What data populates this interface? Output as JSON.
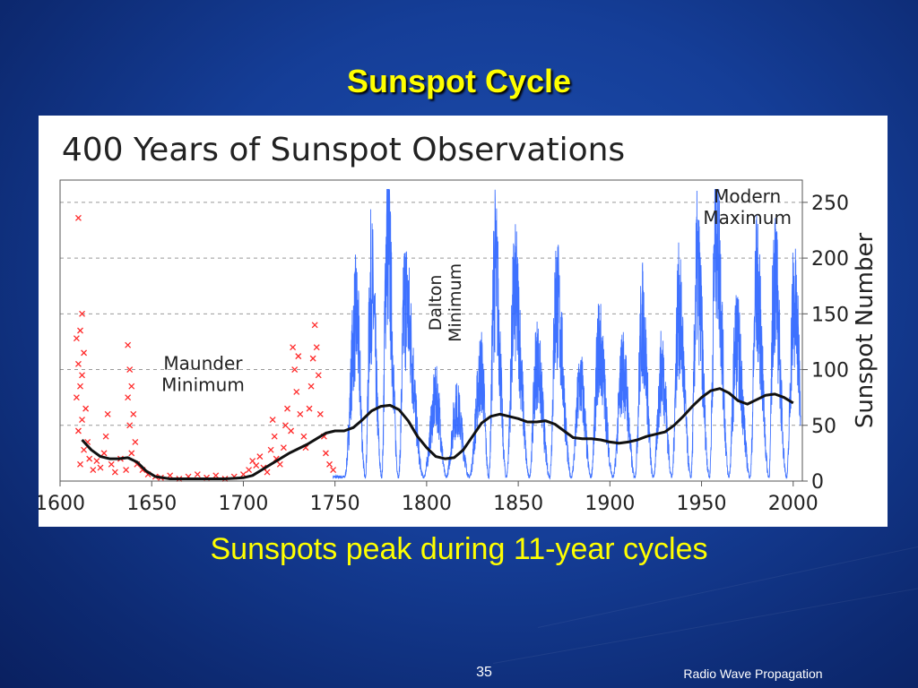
{
  "slide": {
    "title": "Sunspot Cycle",
    "caption": "Sunspots peak during 11-year cycles",
    "page_number": "35",
    "footer": "Radio Wave Propagation"
  },
  "colors": {
    "background": "#153e98",
    "title": "#ffff00",
    "observations_early": "#ff2a2a",
    "observations_modern": "#2962ff",
    "smoothed_trend": "#111111"
  },
  "chart_data": {
    "type": "line",
    "title": "400 Years of Sunspot Observations",
    "ylabel": "Sunspot Number",
    "xlim": [
      1600,
      2005
    ],
    "ylim": [
      0,
      270
    ],
    "x_ticks": [
      1600,
      1650,
      1700,
      1750,
      1800,
      1850,
      1900,
      1950,
      2000
    ],
    "y_ticks": [
      0,
      50,
      100,
      150,
      200,
      250
    ],
    "grid": "horizontal dashed",
    "annotations": [
      {
        "text": "Maunder\nMinimum",
        "x": 1678,
        "y": 100
      },
      {
        "text": "Dalton\nMinimum",
        "x": 1808,
        "y": 160
      },
      {
        "text": "Modern\nMaximum",
        "x": 1975,
        "y": 250
      }
    ],
    "early_observations": {
      "marker": "x",
      "points": [
        [
          1610,
          236
        ],
        [
          1612,
          150
        ],
        [
          1611,
          135
        ],
        [
          1609,
          128
        ],
        [
          1613,
          115
        ],
        [
          1610,
          105
        ],
        [
          1612,
          95
        ],
        [
          1611,
          85
        ],
        [
          1609,
          75
        ],
        [
          1614,
          65
        ],
        [
          1612,
          55
        ],
        [
          1610,
          45
        ],
        [
          1615,
          35
        ],
        [
          1613,
          28
        ],
        [
          1616,
          20
        ],
        [
          1611,
          15
        ],
        [
          1618,
          10
        ],
        [
          1620,
          18
        ],
        [
          1622,
          12
        ],
        [
          1625,
          40
        ],
        [
          1626,
          60
        ],
        [
          1624,
          25
        ],
        [
          1628,
          15
        ],
        [
          1630,
          8
        ],
        [
          1633,
          20
        ],
        [
          1636,
          10
        ],
        [
          1637,
          122
        ],
        [
          1638,
          100
        ],
        [
          1639,
          85
        ],
        [
          1637,
          75
        ],
        [
          1640,
          60
        ],
        [
          1638,
          50
        ],
        [
          1641,
          35
        ],
        [
          1639,
          25
        ],
        [
          1642,
          15
        ],
        [
          1645,
          10
        ],
        [
          1648,
          6
        ],
        [
          1652,
          4
        ],
        [
          1655,
          3
        ],
        [
          1660,
          5
        ],
        [
          1665,
          2
        ],
        [
          1670,
          4
        ],
        [
          1675,
          6
        ],
        [
          1680,
          3
        ],
        [
          1685,
          5
        ],
        [
          1690,
          2
        ],
        [
          1695,
          4
        ],
        [
          1700,
          6
        ],
        [
          1703,
          10
        ],
        [
          1705,
          18
        ],
        [
          1707,
          14
        ],
        [
          1709,
          22
        ],
        [
          1711,
          12
        ],
        [
          1713,
          8
        ],
        [
          1715,
          28
        ],
        [
          1716,
          55
        ],
        [
          1717,
          40
        ],
        [
          1718,
          20
        ],
        [
          1720,
          15
        ],
        [
          1722,
          30
        ],
        [
          1723,
          50
        ],
        [
          1724,
          65
        ],
        [
          1726,
          45
        ],
        [
          1727,
          120
        ],
        [
          1728,
          100
        ],
        [
          1729,
          80
        ],
        [
          1730,
          112
        ],
        [
          1731,
          60
        ],
        [
          1733,
          40
        ],
        [
          1734,
          30
        ],
        [
          1736,
          65
        ],
        [
          1737,
          85
        ],
        [
          1738,
          110
        ],
        [
          1739,
          140
        ],
        [
          1740,
          120
        ],
        [
          1741,
          95
        ],
        [
          1742,
          60
        ],
        [
          1744,
          40
        ],
        [
          1745,
          25
        ],
        [
          1747,
          15
        ],
        [
          1749,
          10
        ]
      ]
    },
    "monthly_observations": {
      "cycles": [
        {
          "min": 1755.2,
          "max": 1761.5,
          "peak": 158
        },
        {
          "min": 1766.5,
          "max": 1769.7,
          "peak": 190
        },
        {
          "min": 1775.5,
          "max": 1778.4,
          "peak": 238
        },
        {
          "min": 1784.7,
          "max": 1788.1,
          "peak": 175
        },
        {
          "min": 1798.3,
          "max": 1805.2,
          "peak": 80
        },
        {
          "min": 1810.6,
          "max": 1816.4,
          "peak": 70
        },
        {
          "min": 1823.3,
          "max": 1829.9,
          "peak": 106
        },
        {
          "min": 1833.9,
          "max": 1837.2,
          "peak": 206
        },
        {
          "min": 1843.5,
          "max": 1848.1,
          "peak": 180
        },
        {
          "min": 1856.0,
          "max": 1860.1,
          "peak": 116
        },
        {
          "min": 1867.2,
          "max": 1870.6,
          "peak": 176
        },
        {
          "min": 1878.9,
          "max": 1883.9,
          "peak": 95
        },
        {
          "min": 1889.6,
          "max": 1894.1,
          "peak": 129
        },
        {
          "min": 1901.7,
          "max": 1907.0,
          "peak": 108
        },
        {
          "min": 1913.6,
          "max": 1917.6,
          "peak": 154
        },
        {
          "min": 1923.6,
          "max": 1928.4,
          "peak": 108
        },
        {
          "min": 1933.8,
          "max": 1937.4,
          "peak": 165
        },
        {
          "min": 1944.2,
          "max": 1947.5,
          "peak": 201
        },
        {
          "min": 1954.3,
          "max": 1957.9,
          "peak": 253
        },
        {
          "min": 1964.9,
          "max": 1968.9,
          "peak": 136
        },
        {
          "min": 1976.5,
          "max": 1979.9,
          "peak": 188
        },
        {
          "min": 1986.8,
          "max": 1989.6,
          "peak": 200
        },
        {
          "min": 1996.4,
          "max": 2000.3,
          "peak": 170
        }
      ],
      "end_year": 2004
    },
    "smoothed_series": {
      "x": [
        1612,
        1617,
        1622,
        1627,
        1632,
        1637,
        1642,
        1647,
        1652,
        1660,
        1670,
        1680,
        1690,
        1700,
        1705,
        1710,
        1715,
        1720,
        1725,
        1730,
        1735,
        1740,
        1745,
        1750,
        1755,
        1760,
        1765,
        1770,
        1775,
        1780,
        1785,
        1790,
        1795,
        1800,
        1805,
        1810,
        1815,
        1820,
        1825,
        1830,
        1835,
        1840,
        1845,
        1850,
        1855,
        1860,
        1865,
        1870,
        1875,
        1880,
        1885,
        1890,
        1895,
        1900,
        1905,
        1910,
        1915,
        1920,
        1925,
        1930,
        1935,
        1940,
        1945,
        1950,
        1955,
        1960,
        1965,
        1970,
        1975,
        1980,
        1985,
        1990,
        1995,
        2000
      ],
      "y": [
        37,
        28,
        22,
        20,
        20,
        21,
        17,
        9,
        4,
        2,
        2,
        2,
        2,
        3,
        5,
        10,
        15,
        20,
        25,
        29,
        33,
        38,
        43,
        45,
        45,
        48,
        55,
        63,
        67,
        68,
        64,
        54,
        40,
        30,
        22,
        20,
        21,
        28,
        40,
        52,
        58,
        60,
        58,
        56,
        53,
        53,
        54,
        51,
        45,
        39,
        38,
        38,
        37,
        35,
        34,
        35,
        37,
        40,
        42,
        44,
        50,
        58,
        67,
        75,
        81,
        83,
        79,
        72,
        69,
        73,
        77,
        78,
        75,
        70
      ]
    }
  }
}
